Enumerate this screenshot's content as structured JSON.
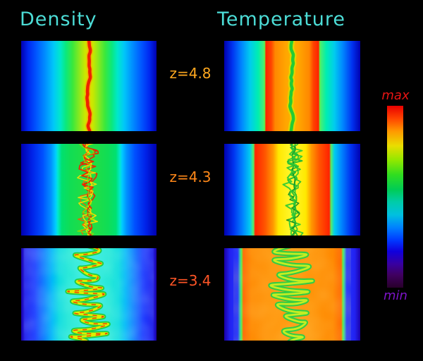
{
  "figure": {
    "density_title": "Density",
    "temperature_title": "Temperature",
    "title_color": "#4cdcd6",
    "rows": [
      {
        "label": "z=4.8",
        "color": "#ffa81f"
      },
      {
        "label": "z=4.3",
        "color": "#ff8819"
      },
      {
        "label": "z=3.4",
        "color": "#ff5526"
      }
    ],
    "colorbar": {
      "max_label": "max",
      "min_label": "min",
      "max_color": "#e81414",
      "min_color": "#7d14c8",
      "stops": [
        [
          0.0,
          "#e80000"
        ],
        [
          0.07,
          "#ff4400"
        ],
        [
          0.14,
          "#ff9900"
        ],
        [
          0.22,
          "#eadd00"
        ],
        [
          0.3,
          "#90e800"
        ],
        [
          0.38,
          "#30dd20"
        ],
        [
          0.46,
          "#00cc55"
        ],
        [
          0.53,
          "#00ccaa"
        ],
        [
          0.6,
          "#00c0e0"
        ],
        [
          0.67,
          "#0080ff"
        ],
        [
          0.74,
          "#0038ff"
        ],
        [
          0.8,
          "#1000dd"
        ],
        [
          0.87,
          "#3800a0"
        ],
        [
          0.93,
          "#400060"
        ],
        [
          1.0,
          "#28002a"
        ]
      ]
    }
  },
  "chart_data": {
    "type": "heatmap",
    "columns": [
      "Density",
      "Temperature"
    ],
    "rows": [
      "z=4.8",
      "z=4.3",
      "z=3.4"
    ],
    "colorbar_labels": {
      "top": "max",
      "bottom": "min"
    },
    "legend_position": "right",
    "panels": {
      "d48": {
        "quantity": "Density",
        "redshift": "z=4.8",
        "gradient": [
          [
            0.0,
            "#0000b0"
          ],
          [
            0.05,
            "#0026f0"
          ],
          [
            0.11,
            "#0055ff"
          ],
          [
            0.18,
            "#0090ff"
          ],
          [
            0.24,
            "#00c8f8"
          ],
          [
            0.29,
            "#00e8c8"
          ],
          [
            0.33,
            "#0ae87e"
          ],
          [
            0.38,
            "#3ae83c"
          ],
          [
            0.43,
            "#8ae81e"
          ],
          [
            0.47,
            "#c8e800"
          ],
          [
            0.5,
            "#e0e000"
          ],
          [
            0.53,
            "#c8e800"
          ],
          [
            0.57,
            "#8ae81e"
          ],
          [
            0.62,
            "#3ae83c"
          ],
          [
            0.67,
            "#0ae87e"
          ],
          [
            0.71,
            "#00e8c8"
          ],
          [
            0.76,
            "#00c8f8"
          ],
          [
            0.82,
            "#0090ff"
          ],
          [
            0.89,
            "#0055ff"
          ],
          [
            0.95,
            "#0026f0"
          ],
          [
            1.0,
            "#0000b0"
          ]
        ],
        "mottle": null,
        "filament": {
          "type": "wavy",
          "cx": 0.5,
          "stepAmp": 2.2,
          "damp": 0.9,
          "maxDev": 6,
          "seed": 11,
          "strokes": [
            {
              "c": "#ff9900",
              "w": 8,
              "o": 0.55
            },
            {
              "c": "#ee2200",
              "w": 4.5,
              "o": 1
            }
          ]
        }
      },
      "t48": {
        "quantity": "Temperature",
        "redshift": "z=4.8",
        "gradient": [
          [
            0.0,
            "#0000b0"
          ],
          [
            0.06,
            "#0033f0"
          ],
          [
            0.13,
            "#0088ff"
          ],
          [
            0.19,
            "#00ccee"
          ],
          [
            0.25,
            "#00eeb0"
          ],
          [
            0.288,
            "#44ee77"
          ],
          [
            0.298,
            "#66ee44"
          ],
          [
            0.306,
            "#ff2200"
          ],
          [
            0.345,
            "#ff4400"
          ],
          [
            0.375,
            "#ff8800"
          ],
          [
            0.45,
            "#ffa500"
          ],
          [
            0.5,
            "#ffb000"
          ],
          [
            0.55,
            "#ffa500"
          ],
          [
            0.625,
            "#ff8800"
          ],
          [
            0.655,
            "#ff4400"
          ],
          [
            0.694,
            "#ff2200"
          ],
          [
            0.702,
            "#66ee44"
          ],
          [
            0.712,
            "#44ee77"
          ],
          [
            0.75,
            "#00eeb0"
          ],
          [
            0.81,
            "#00ccee"
          ],
          [
            0.87,
            "#0088ff"
          ],
          [
            0.94,
            "#0033f0"
          ],
          [
            1.0,
            "#0000b0"
          ]
        ],
        "mottle": null,
        "filament": {
          "type": "wavy",
          "cx": 0.5,
          "stepAmp": 2.4,
          "damp": 0.9,
          "maxDev": 7,
          "seed": 21,
          "strokes": [
            {
              "c": "#ccee00",
              "w": 9,
              "o": 0.6
            },
            {
              "c": "#22cc33",
              "w": 4.5,
              "o": 1
            }
          ]
        }
      },
      "d43": {
        "quantity": "Density",
        "redshift": "z=4.3",
        "gradient": [
          [
            0.0,
            "#0000b0"
          ],
          [
            0.08,
            "#0022e8"
          ],
          [
            0.16,
            "#0050ff"
          ],
          [
            0.22,
            "#0090ff"
          ],
          [
            0.255,
            "#00ccff"
          ],
          [
            0.27,
            "#00e8d0"
          ],
          [
            0.3,
            "#00e070"
          ],
          [
            0.36,
            "#10dd55"
          ],
          [
            0.5,
            "#28dd3f"
          ],
          [
            0.64,
            "#10dd55"
          ],
          [
            0.7,
            "#00e070"
          ],
          [
            0.73,
            "#00e8d0"
          ],
          [
            0.745,
            "#00ccff"
          ],
          [
            0.78,
            "#0090ff"
          ],
          [
            0.84,
            "#0050ff"
          ],
          [
            0.92,
            "#0022e8"
          ],
          [
            1.0,
            "#0000b0"
          ]
        ],
        "mottle": null,
        "filament": {
          "type": "turbulent",
          "cx": 0.5,
          "amp": 15,
          "seed": 31,
          "strokes": [
            {
              "c": "#ee2200",
              "w": 1.7,
              "o": 0.95
            },
            {
              "c": "#ffdd00",
              "w": 1.6,
              "o": 0.95
            },
            {
              "c": "#ff5500",
              "w": 1.4,
              "o": 0.9
            },
            {
              "c": "#ffdd00",
              "w": 1.5,
              "o": 0.9
            },
            {
              "c": "#ee2200",
              "w": 1.8,
              "o": 0.95
            },
            {
              "c": "#99dd00",
              "w": 1.3,
              "o": 0.8
            }
          ]
        }
      },
      "t43": {
        "quantity": "Temperature",
        "redshift": "z=4.3",
        "gradient": [
          [
            0.0,
            "#0000b0"
          ],
          [
            0.07,
            "#0033f0"
          ],
          [
            0.14,
            "#0088ff"
          ],
          [
            0.19,
            "#00ccee"
          ],
          [
            0.215,
            "#55ee66"
          ],
          [
            0.228,
            "#ff2200"
          ],
          [
            0.3,
            "#ff5500"
          ],
          [
            0.36,
            "#ff9900"
          ],
          [
            0.4,
            "#ffe800"
          ],
          [
            0.5,
            "#fff830"
          ],
          [
            0.6,
            "#ffe800"
          ],
          [
            0.64,
            "#ff9900"
          ],
          [
            0.7,
            "#ff5500"
          ],
          [
            0.772,
            "#ff2200"
          ],
          [
            0.785,
            "#55ee66"
          ],
          [
            0.81,
            "#00ccee"
          ],
          [
            0.86,
            "#0088ff"
          ],
          [
            0.93,
            "#0033f0"
          ],
          [
            1.0,
            "#0000b0"
          ]
        ],
        "mottle": null,
        "filament": {
          "type": "turbulent",
          "cx": 0.5,
          "amp": 12,
          "seed": 41,
          "strokes": [
            {
              "c": "#22bb33",
              "w": 2.0,
              "o": 0.95
            },
            {
              "c": "#33cc33",
              "w": 1.8,
              "o": 0.95
            },
            {
              "c": "#118822",
              "w": 1.6,
              "o": 0.9
            },
            {
              "c": "#33cc33",
              "w": 2.0,
              "o": 0.95
            },
            {
              "c": "#22bb33",
              "w": 1.7,
              "o": 0.9
            }
          ]
        }
      },
      "d34": {
        "quantity": "Density",
        "redshift": "z=3.4",
        "gradient": [
          [
            0.0,
            "#1a00a8"
          ],
          [
            0.03,
            "#2222ee"
          ],
          [
            0.1,
            "#2040ff"
          ],
          [
            0.17,
            "#1080ff"
          ],
          [
            0.23,
            "#00b8f8"
          ],
          [
            0.28,
            "#10dce0"
          ],
          [
            0.35,
            "#28e8d8"
          ],
          [
            0.5,
            "#38eede"
          ],
          [
            0.65,
            "#28e8d8"
          ],
          [
            0.72,
            "#10dce0"
          ],
          [
            0.77,
            "#00b8f8"
          ],
          [
            0.83,
            "#1080ff"
          ],
          [
            0.9,
            "#2040ff"
          ],
          [
            0.97,
            "#2222ee"
          ],
          [
            1.0,
            "#1a00a8"
          ]
        ],
        "mottle": {
          "color": "#bfffe9",
          "opacity": 0.4,
          "freq": 0.035,
          "seed": 5,
          "inset": 0.1
        },
        "filament": {
          "type": "zigzag",
          "cx": 0.5,
          "amp": 42,
          "folds": 16,
          "seed": 51,
          "strokes": [
            {
              "c": "#22cc44",
              "w": 7,
              "o": 1
            },
            {
              "c": "#ddee00",
              "w": 3.2,
              "o": 1
            },
            {
              "c": "#ee3300",
              "w": 1.5,
              "o": 0.9,
              "dash": "5 8"
            }
          ]
        }
      },
      "t34": {
        "quantity": "Temperature",
        "redshift": "z=3.4",
        "gradient": [
          [
            0.0,
            "#1a00a8"
          ],
          [
            0.04,
            "#2222f0"
          ],
          [
            0.1,
            "#2233ff"
          ],
          [
            0.118,
            "#33ccaa"
          ],
          [
            0.128,
            "#55ee44"
          ],
          [
            0.14,
            "#ff6600"
          ],
          [
            0.2,
            "#ff8800"
          ],
          [
            0.35,
            "#ff9308"
          ],
          [
            0.5,
            "#ff9a10"
          ],
          [
            0.65,
            "#ff9308"
          ],
          [
            0.8,
            "#ff8800"
          ],
          [
            0.86,
            "#ff6600"
          ],
          [
            0.872,
            "#55ee44"
          ],
          [
            0.882,
            "#33ccaa"
          ],
          [
            0.9,
            "#2233ff"
          ],
          [
            0.96,
            "#2222f0"
          ],
          [
            1.0,
            "#1a00a8"
          ]
        ],
        "mottle": {
          "color": "#ffd040",
          "opacity": 0.45,
          "freq": 0.03,
          "seed": 9,
          "inset": 0.14
        },
        "filament": {
          "type": "zigzag",
          "cx": 0.5,
          "amp": 40,
          "folds": 15,
          "seed": 61,
          "strokes": [
            {
              "c": "#33cc44",
              "w": 7,
              "o": 1
            },
            {
              "c": "#ccee22",
              "w": 2.8,
              "o": 0.95
            }
          ]
        }
      }
    }
  }
}
